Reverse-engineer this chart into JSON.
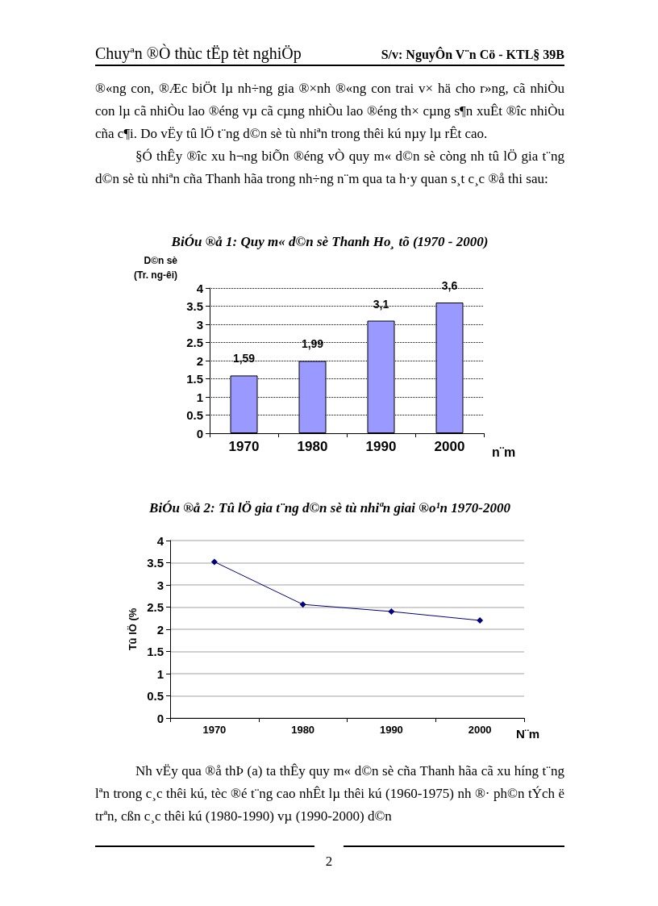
{
  "chart_data": [
    {
      "type": "bar",
      "title": "BiÓu ®å 1: Quy m« d©n sè Thanh Ho¸ tõ (1970 - 2000)",
      "xlabel": "n¨m",
      "ylabel": "D©n sè\n(Tr. ng-êi)",
      "categories": [
        "1970",
        "1980",
        "1990",
        "2000"
      ],
      "values": [
        1.59,
        1.99,
        3.1,
        3.6
      ],
      "value_labels": [
        "1,59",
        "1,99",
        "3,1",
        "3,6"
      ],
      "color": "#9999ff",
      "ylim": [
        0,
        4
      ],
      "yticks": [
        0,
        0.5,
        1,
        1.5,
        2,
        2.5,
        3,
        3.5,
        4
      ],
      "grid": "y",
      "line_style": "dotted",
      "annotations": [
        "Chuyªn ®Ò thùc tËp tèt nghiÖp",
        "S/v: NguyÔn V¨n Cö - KTL§ 39B",
        "®«ng con, ®Æc biÖt lµ nh÷ng gia ®×nh ®«ng con trai v× hä cho r»ng, cã nhiÒu con lµ cã nhiÒu lao ®éng vµ cã cµng nhiÒu lao ®éng th× cµng s¶n xuÊt ®îc nhiÒu cña c¶i. Do vËy tû lÖ t¨ng d©n sè tù nhiªn trong thêi kú nµy lµ rÊt cao.",
        "§Ó thÊy ®îc xu h¬ng biÕn ®éng vÒ quy m« d©n sè còng nh tû lÖ gia t¨ng d©n sè tù nhiªn cña Thanh hãa trong nh÷ng n¨m qua ta h·y quan s¸t c¸c ®å thi sau:"
      ]
    },
    {
      "type": "line",
      "title": "BiÓu ®å 2: Tû lÖ gia t¨ng d©n sè tù nhiªn giai ®o¹n 1970-2000",
      "xlabel": "N¨m",
      "ylabel": "Tû lÖ (%",
      "categories": [
        "1970",
        "1980",
        "1990",
        "2000"
      ],
      "values": [
        3.52,
        2.56,
        2.4,
        2.2
      ],
      "color": "#000080",
      "marker": "diamond",
      "ylim": [
        0,
        4
      ],
      "yticks": [
        0,
        0.5,
        1,
        1.5,
        2,
        2.5,
        3,
        3.5,
        4
      ],
      "grid": "y",
      "annotations": [
        "Nh vËy qua ®å thÞ (a) ta thÊy quy m« d©n sè cña Thanh hãa cã xu híng t¨ng lªn trong c¸c thêi kú, tèc ®é t¨ng cao nhÊt lµ thêi kú (1960-1975) nh ®· ph©n tÝch ë trªn, cßn c¸c thêi kú (1980-1990) vµ (1990-2000) d©n",
        "2"
      ]
    }
  ]
}
